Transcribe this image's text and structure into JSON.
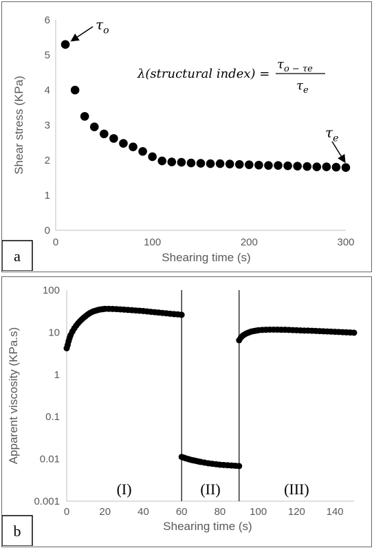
{
  "chart_data": [
    {
      "panel_label": "a",
      "type": "scatter",
      "xlabel": "Shearing time (s)",
      "ylabel": "Shear stress (KPa)",
      "xlim": [
        0,
        300
      ],
      "ylim": [
        0,
        6
      ],
      "xticks": [
        "0",
        "100",
        "200",
        "300"
      ],
      "yticks": [
        "0",
        "1",
        "2",
        "3",
        "4",
        "5",
        "6"
      ],
      "grid": false,
      "x": [
        10,
        20,
        30,
        40,
        50,
        60,
        70,
        80,
        90,
        100,
        110,
        120,
        130,
        140,
        150,
        160,
        170,
        180,
        190,
        200,
        210,
        220,
        230,
        240,
        250,
        260,
        270,
        280,
        290,
        300
      ],
      "y": [
        5.3,
        4.0,
        3.25,
        2.95,
        2.75,
        2.62,
        2.48,
        2.38,
        2.25,
        2.1,
        1.98,
        1.95,
        1.94,
        1.92,
        1.91,
        1.9,
        1.9,
        1.89,
        1.88,
        1.87,
        1.86,
        1.85,
        1.85,
        1.84,
        1.83,
        1.82,
        1.81,
        1.81,
        1.8,
        1.79
      ],
      "annotations": {
        "tau_o": "τo",
        "tau_e": "τe",
        "formula_left": "λ(structural index) =",
        "formula_numerator": "τo − τe",
        "formula_denominator": "τe"
      }
    },
    {
      "panel_label": "b",
      "type": "line",
      "xlabel": "Shearing time (s)",
      "ylabel": "Apparent viscosity (KPa.s)",
      "xlim": [
        0,
        150
      ],
      "ylim": [
        0.001,
        100
      ],
      "yscale": "log",
      "xticks": [
        "0",
        "20",
        "40",
        "60",
        "80",
        "100",
        "120",
        "140"
      ],
      "yticks": [
        "0.001",
        "0.01",
        "0.1",
        "1",
        "10",
        "100"
      ],
      "grid": false,
      "dividers": [
        60,
        90
      ],
      "regions": [
        "(I)",
        "(II)",
        "(III)"
      ],
      "series": [
        {
          "x": [
            0,
            0.5,
            1,
            1.5,
            2,
            3,
            4,
            5,
            6,
            7,
            8,
            9,
            10,
            11,
            12,
            13,
            14,
            15,
            16,
            17,
            18,
            19,
            20,
            22,
            24,
            26,
            28,
            30,
            32,
            34,
            36,
            38,
            40,
            42,
            44,
            46,
            48,
            50,
            52,
            54,
            56,
            58,
            60
          ],
          "y": [
            4.2,
            5.0,
            6.2,
            7.3,
            8.5,
            10.5,
            12.5,
            14.5,
            16.5,
            18.5,
            20.5,
            22.5,
            24.5,
            26.5,
            28.5,
            30,
            31.5,
            32.5,
            33.5,
            34.5,
            35,
            35.5,
            36,
            36,
            35.8,
            35.5,
            35,
            34.5,
            34,
            33.5,
            33,
            32.5,
            32,
            31.3,
            30.6,
            30,
            29.4,
            28.8,
            28.2,
            27.6,
            27,
            26.6,
            26
          ]
        },
        {
          "x": [
            60,
            61,
            62,
            63,
            64,
            65,
            66,
            67,
            68,
            69,
            70,
            72,
            74,
            76,
            78,
            80,
            82,
            84,
            86,
            88,
            90
          ],
          "y": [
            0.0112,
            0.0108,
            0.0104,
            0.0101,
            0.0098,
            0.0095,
            0.0093,
            0.0091,
            0.0089,
            0.0087,
            0.0085,
            0.0082,
            0.0079,
            0.0077,
            0.0075,
            0.0073,
            0.0072,
            0.0071,
            0.007,
            0.0069,
            0.0068
          ]
        },
        {
          "x": [
            90,
            91,
            92,
            93,
            94,
            95,
            96,
            97,
            98,
            99,
            100,
            102,
            104,
            106,
            108,
            110,
            112,
            114,
            116,
            118,
            120,
            122,
            124,
            126,
            128,
            130,
            132,
            134,
            136,
            138,
            140,
            142,
            144,
            146,
            148,
            150
          ],
          "y": [
            6.5,
            7.6,
            8.4,
            9.0,
            9.5,
            9.9,
            10.3,
            10.6,
            10.8,
            11.0,
            11.2,
            11.4,
            11.5,
            11.6,
            11.6,
            11.6,
            11.5,
            11.5,
            11.4,
            11.3,
            11.2,
            11.1,
            11.0,
            11.0,
            10.9,
            10.8,
            10.7,
            10.6,
            10.5,
            10.4,
            10.3,
            10.2,
            10.1,
            10.0,
            9.9,
            9.8
          ]
        }
      ]
    }
  ]
}
